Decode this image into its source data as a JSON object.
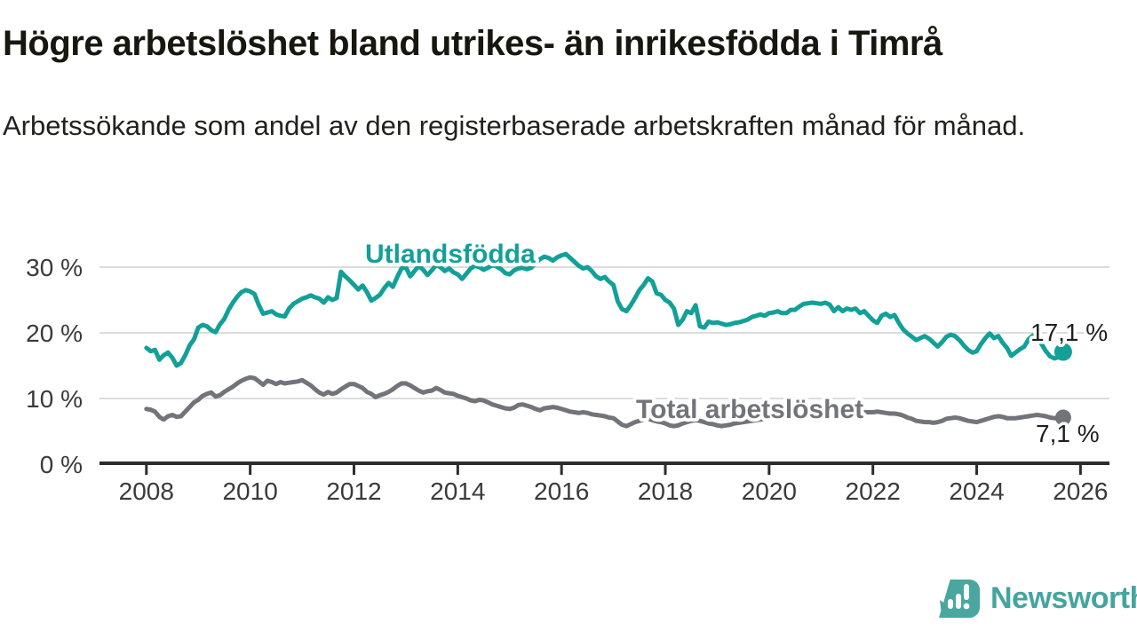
{
  "header": {
    "title": "Högre arbetslöshet bland utrikes- än inrikesfödda i Timrå",
    "subtitle": "Arbetssökande som andel av den registerbaserade arbetskraften månad för månad."
  },
  "chart_data": {
    "type": "line",
    "unit": "percent of registered labour force",
    "frequency": "monthly",
    "x_start": "2008-01",
    "x_end": "2025-09",
    "grid": "horizontal",
    "legend_position": "inline-labels",
    "x_ticks": [
      2008,
      2010,
      2012,
      2014,
      2016,
      2018,
      2020,
      2022,
      2024,
      2026
    ],
    "x_tick_labels": [
      "2008",
      "2010",
      "2012",
      "2014",
      "2016",
      "2018",
      "2020",
      "2022",
      "2024",
      "2026"
    ],
    "y_ticks": [
      0,
      10,
      20,
      30
    ],
    "y_tick_labels": [
      "0 %",
      "10 %",
      "20 %",
      "30 %"
    ],
    "ylim": [
      0,
      33
    ],
    "series": [
      {
        "name": "Utlandsfödda",
        "color": "#12a098",
        "end_label": "17,1 %",
        "end_value": 17.1,
        "values": [
          17.7,
          17.2,
          17.4,
          15.9,
          16.6,
          17.0,
          16.2,
          15.0,
          15.4,
          16.6,
          18.1,
          19.0,
          20.8,
          21.2,
          21.0,
          20.4,
          20.1,
          21.3,
          22.1,
          23.5,
          24.6,
          25.5,
          26.2,
          26.5,
          26.3,
          25.9,
          24.2,
          22.9,
          23.1,
          23.3,
          22.8,
          22.6,
          22.5,
          23.7,
          24.4,
          24.8,
          25.2,
          25.4,
          25.7,
          25.4,
          25.2,
          24.6,
          25.4,
          25.0,
          25.3,
          29.3,
          28.6,
          28.0,
          27.3,
          26.6,
          27.2,
          26.2,
          24.9,
          25.3,
          25.8,
          26.8,
          27.6,
          27.0,
          28.5,
          29.8,
          30.0,
          28.6,
          29.4,
          30.2,
          29.6,
          28.8,
          29.5,
          30.3,
          30.0,
          29.4,
          29.8,
          29.2,
          28.9,
          28.2,
          29.0,
          29.8,
          30.2,
          30.0,
          29.6,
          29.9,
          30.3,
          30.1,
          29.7,
          29.1,
          28.9,
          29.5,
          29.8,
          29.9,
          29.7,
          29.9,
          30.6,
          31.2,
          31.6,
          31.4,
          31.0,
          31.5,
          31.8,
          32.0,
          31.4,
          30.8,
          30.2,
          29.8,
          30.0,
          29.4,
          28.6,
          28.2,
          28.5,
          27.8,
          27.3,
          24.8,
          23.6,
          23.3,
          24.2,
          25.3,
          26.5,
          27.3,
          28.3,
          27.8,
          26.0,
          25.8,
          25.0,
          24.6,
          23.7,
          21.2,
          22.0,
          23.3,
          23.0,
          24.2,
          21.0,
          20.8,
          21.7,
          21.5,
          21.6,
          21.4,
          21.2,
          21.3,
          21.5,
          21.6,
          21.8,
          22.0,
          22.4,
          22.6,
          22.8,
          22.6,
          23.0,
          23.1,
          23.3,
          23.0,
          23.0,
          23.5,
          23.5,
          24.0,
          24.4,
          24.5,
          24.6,
          24.5,
          24.4,
          24.6,
          24.3,
          23.3,
          23.9,
          23.3,
          23.7,
          23.5,
          23.7,
          23.0,
          23.3,
          22.6,
          21.9,
          21.5,
          22.6,
          22.9,
          22.4,
          22.7,
          21.5,
          20.5,
          19.9,
          19.4,
          18.9,
          19.2,
          19.5,
          19.1,
          18.5,
          17.9,
          18.6,
          19.4,
          19.7,
          19.5,
          18.9,
          18.1,
          17.4,
          17.0,
          17.2,
          18.3,
          19.2,
          19.9,
          19.2,
          19.5,
          18.5,
          17.7,
          16.5,
          17.0,
          17.5,
          17.9,
          19.0,
          19.6,
          19.3,
          18.3,
          17.2,
          16.4,
          16.1,
          16.3,
          17.1
        ]
      },
      {
        "name": "Total arbetslöshet",
        "color": "#73737a",
        "end_label": "7,1 %",
        "end_value": 7.1,
        "values": [
          8.4,
          8.3,
          8.0,
          7.2,
          6.8,
          7.3,
          7.5,
          7.2,
          7.3,
          8.0,
          8.7,
          9.4,
          9.8,
          10.4,
          10.7,
          10.9,
          10.3,
          10.5,
          11.0,
          11.4,
          11.8,
          12.3,
          12.7,
          13.0,
          13.2,
          13.1,
          12.6,
          12.1,
          12.7,
          12.5,
          12.2,
          12.5,
          12.3,
          12.4,
          12.5,
          12.6,
          12.8,
          12.4,
          12.0,
          11.4,
          10.9,
          10.6,
          11.0,
          10.7,
          10.9,
          11.4,
          11.8,
          12.2,
          12.2,
          11.9,
          11.6,
          11.0,
          10.7,
          10.2,
          10.5,
          10.7,
          11.0,
          11.4,
          11.9,
          12.3,
          12.3,
          12.0,
          11.6,
          11.2,
          10.9,
          11.1,
          11.2,
          11.6,
          11.3,
          10.9,
          10.8,
          10.7,
          10.4,
          10.2,
          10.0,
          9.7,
          9.6,
          9.8,
          9.7,
          9.4,
          9.1,
          8.9,
          8.7,
          8.5,
          8.4,
          8.6,
          9.0,
          9.1,
          8.9,
          8.7,
          8.4,
          8.2,
          8.5,
          8.6,
          8.7,
          8.6,
          8.4,
          8.2,
          8.0,
          7.9,
          7.8,
          7.9,
          7.8,
          7.6,
          7.5,
          7.4,
          7.3,
          7.1,
          7.0,
          6.5,
          6.0,
          5.8,
          6.1,
          6.4,
          6.6,
          6.8,
          6.9,
          6.7,
          6.5,
          6.4,
          6.2,
          5.9,
          5.8,
          5.9,
          6.2,
          6.4,
          6.6,
          6.7,
          6.6,
          6.4,
          6.2,
          6.1,
          5.9,
          5.8,
          5.9,
          6.0,
          6.2,
          6.3,
          6.4,
          6.5,
          6.6,
          6.7,
          6.8,
          6.9,
          7.0,
          7.2,
          7.6,
          8.0,
          8.2,
          8.3,
          8.3,
          8.2,
          8.1,
          8.1,
          8.0,
          8.1,
          8.1,
          8.0,
          8.0,
          7.9,
          7.8,
          7.8,
          7.7,
          7.8,
          7.8,
          7.9,
          7.9,
          7.9,
          7.9,
          8.0,
          7.9,
          7.8,
          7.7,
          7.7,
          7.6,
          7.4,
          7.1,
          6.9,
          6.6,
          6.5,
          6.4,
          6.4,
          6.3,
          6.4,
          6.6,
          6.9,
          7.0,
          7.1,
          7.0,
          6.8,
          6.6,
          6.5,
          6.4,
          6.6,
          6.8,
          7.0,
          7.2,
          7.3,
          7.2,
          7.0,
          7.0,
          7.0,
          7.1,
          7.2,
          7.3,
          7.4,
          7.5,
          7.4,
          7.3,
          7.1,
          7.0,
          7.0,
          7.1
        ]
      }
    ]
  },
  "footer": {
    "brand": "Newsworthy",
    "brand_color": "#44a59e"
  }
}
